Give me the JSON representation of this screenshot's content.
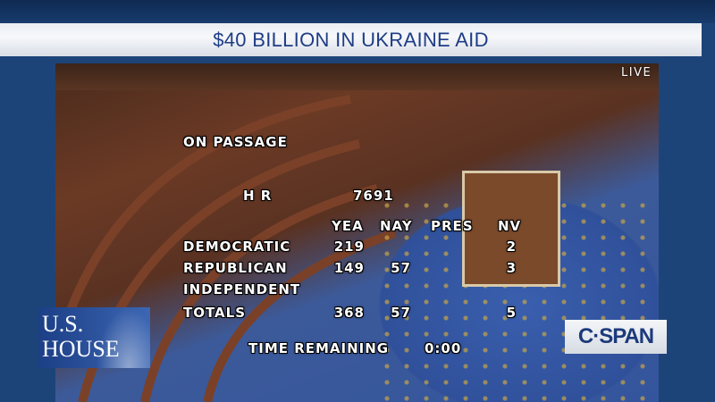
{
  "banner": {
    "title": "$40 BILLION IN UKRAINE AID"
  },
  "live_label": "LIVE",
  "logos": {
    "us_house": "U.S. HOUSE",
    "network": "C-SPAN"
  },
  "vote": {
    "question": "ON PASSAGE",
    "bill_type": "H R",
    "bill_number": "7691",
    "columns": [
      "YEA",
      "NAY",
      "PRES",
      "NV"
    ],
    "rows": [
      {
        "party": "DEMOCRATIC",
        "yea": "219",
        "nay": "",
        "pres": "",
        "nv": "2"
      },
      {
        "party": "REPUBLICAN",
        "yea": "149",
        "nay": "57",
        "pres": "",
        "nv": "3"
      },
      {
        "party": "INDEPENDENT",
        "yea": "",
        "nay": "",
        "pres": "",
        "nv": ""
      },
      {
        "party": "TOTALS",
        "yea": "368",
        "nay": "57",
        "pres": "",
        "nv": "5"
      }
    ],
    "time_label": "TIME REMAINING",
    "time_value": "0:00"
  }
}
